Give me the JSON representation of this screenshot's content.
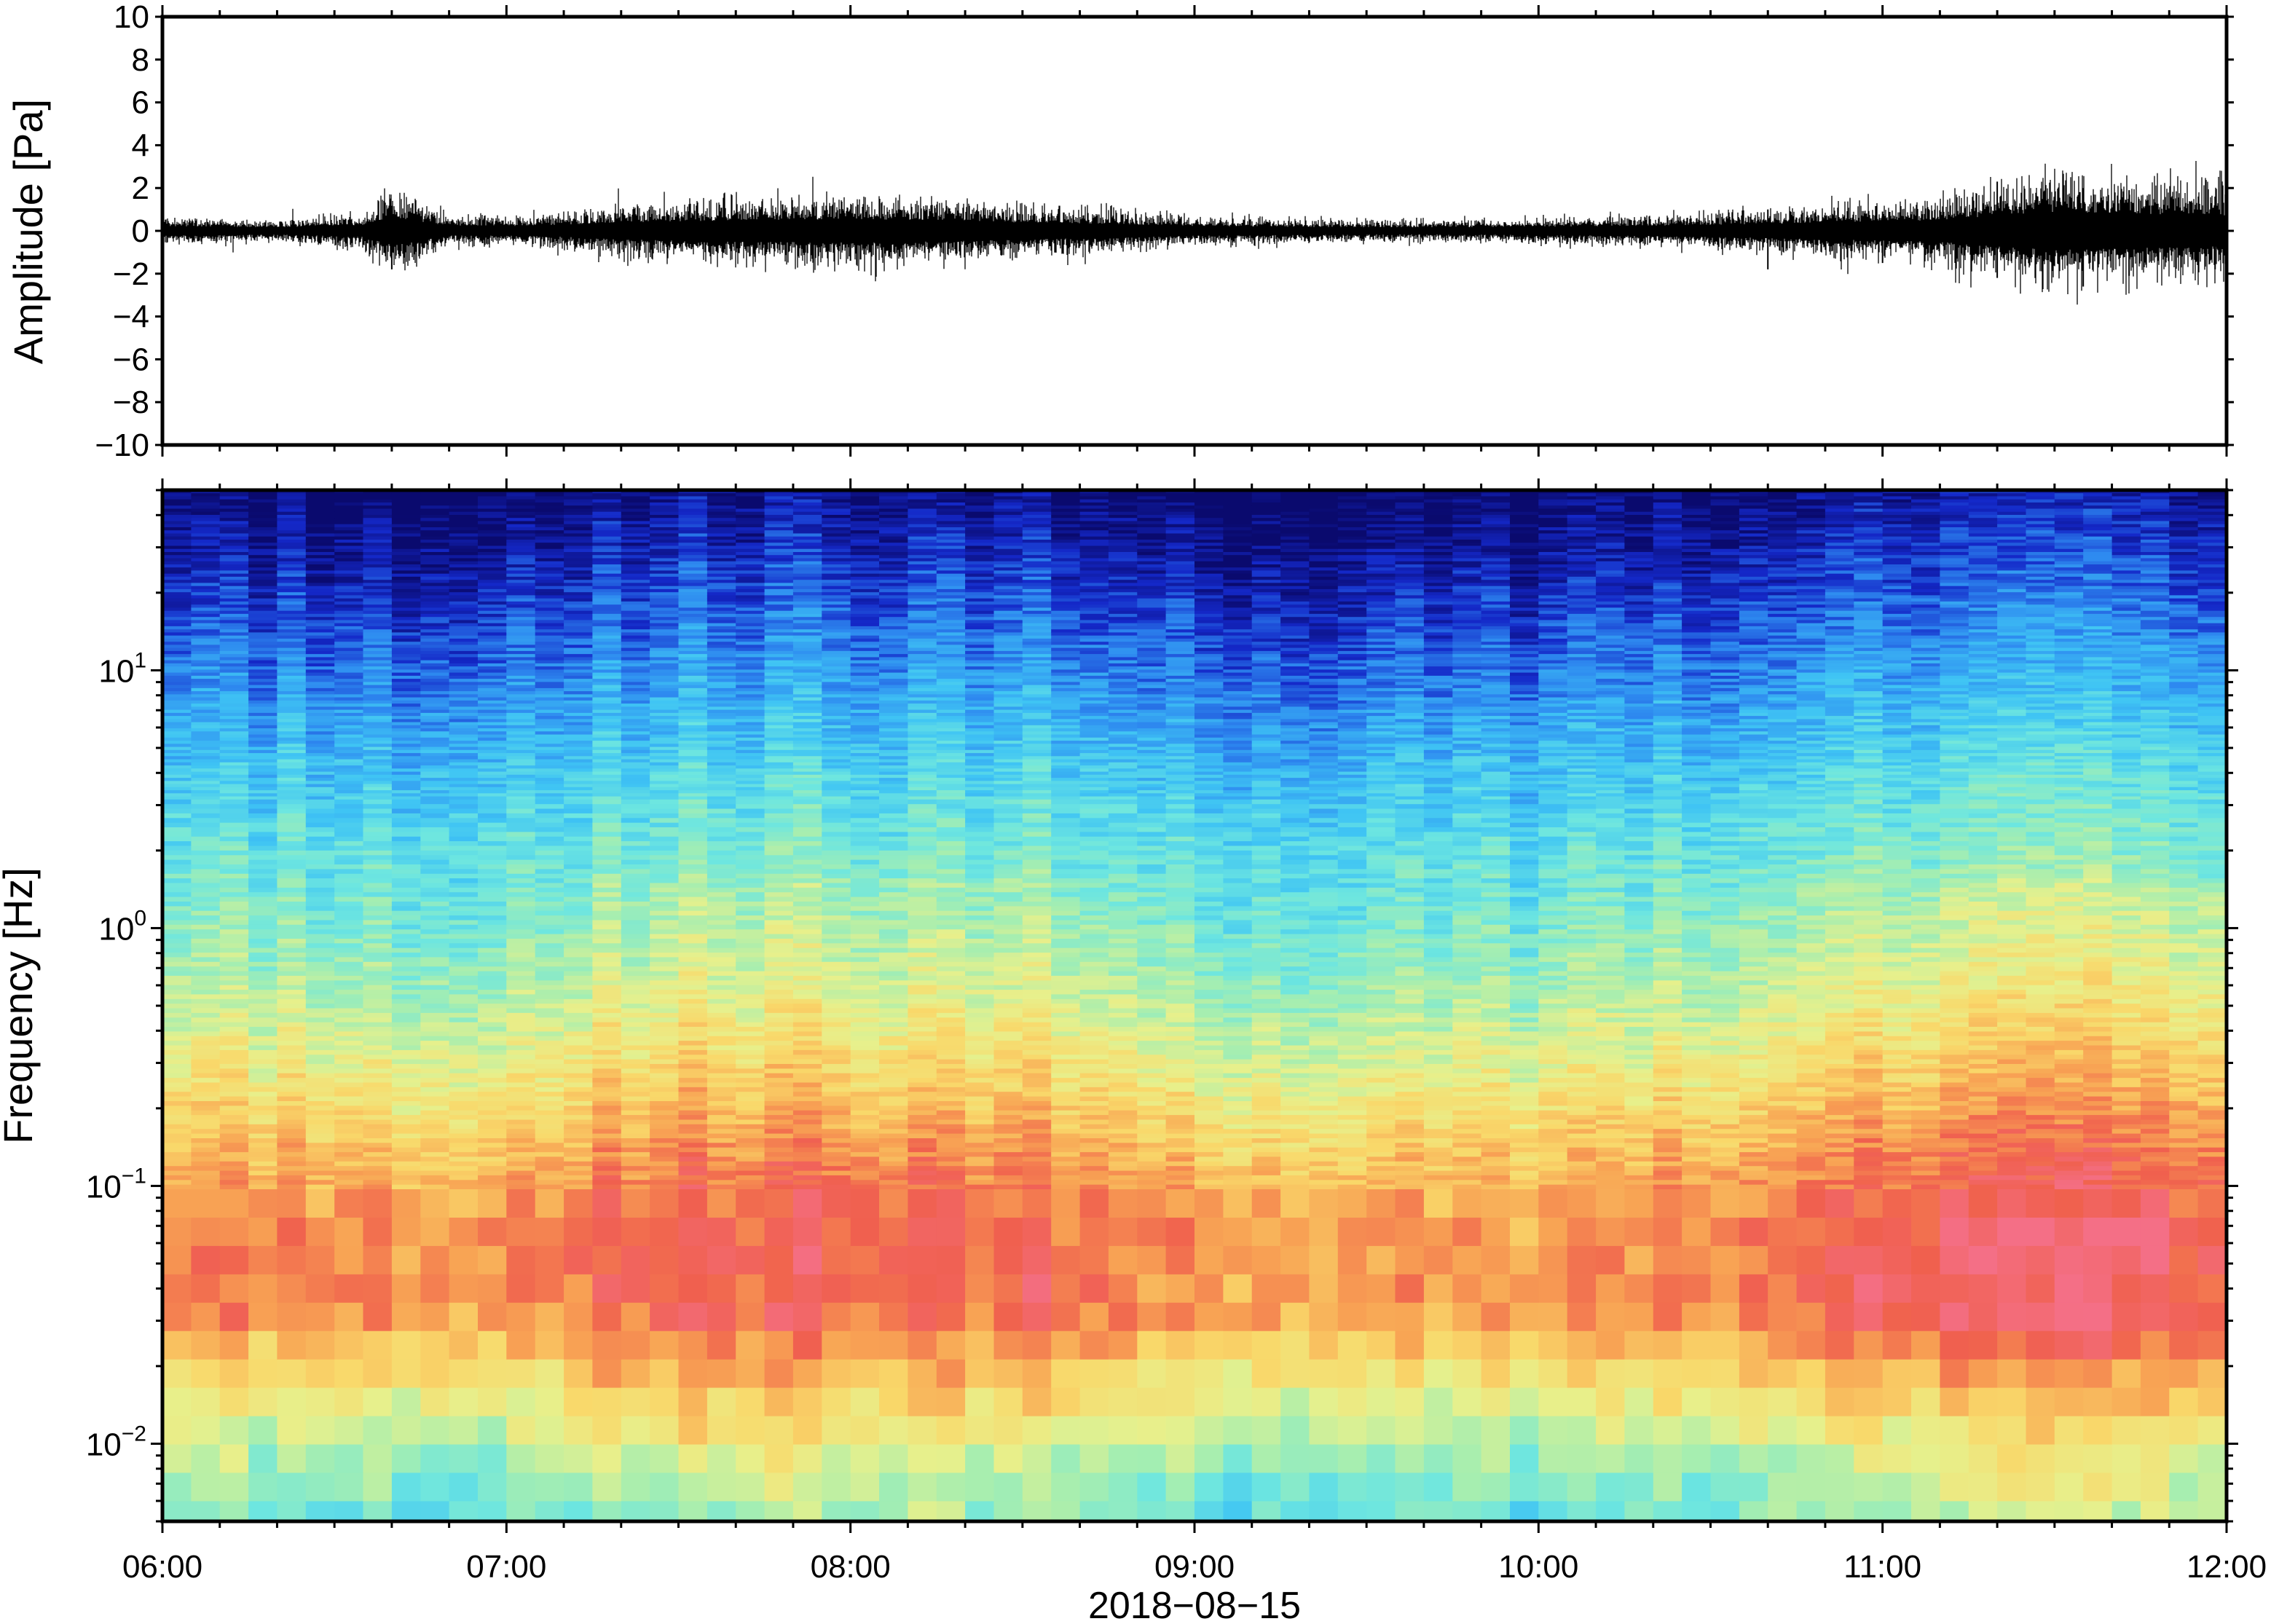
{
  "chart_data": [
    {
      "type": "line",
      "panel": "waveform",
      "ylabel": "Amplitude [Pa]",
      "ylim": [
        -10,
        10
      ],
      "yticks": [
        10,
        8,
        6,
        4,
        2,
        0,
        -2,
        -4,
        -6,
        -8,
        -10
      ],
      "ytick_labels": [
        "10",
        "8",
        "6",
        "4",
        "2",
        "0",
        "−2",
        "−4",
        "−6",
        "−8",
        "−10"
      ],
      "xlim": [
        "06:00",
        "12:00"
      ],
      "grid": false,
      "series": [
        {
          "envelope_time": [
            "06:00",
            "06:20",
            "06:35",
            "06:40",
            "06:50",
            "07:00",
            "07:10",
            "07:20",
            "07:40",
            "08:00",
            "08:15",
            "08:30",
            "08:45",
            "09:00",
            "09:15",
            "09:30",
            "09:45",
            "10:00",
            "10:15",
            "10:30",
            "10:40",
            "10:50",
            "11:00",
            "11:10",
            "11:20",
            "11:30",
            "11:40",
            "11:50",
            "12:00"
          ],
          "envelope_amplitude": [
            0.4,
            0.3,
            0.5,
            1.2,
            0.4,
            0.4,
            0.5,
            0.7,
            0.9,
            1.0,
            0.9,
            0.7,
            0.6,
            0.4,
            0.35,
            0.3,
            0.3,
            0.35,
            0.4,
            0.5,
            0.6,
            0.7,
            0.8,
            0.9,
            1.3,
            1.6,
            1.5,
            1.4,
            1.3
          ],
          "max_spikes": [
            {
              "time": "06:40",
              "min": -1.8,
              "max": 1.1
            },
            {
              "time": "08:00",
              "min": -1.4,
              "max": 1.0
            },
            {
              "time": "10:40",
              "min": -1.8,
              "max": 1.0
            },
            {
              "time": "11:00",
              "min": -1.5,
              "max": 0.9
            },
            {
              "time": "11:20",
              "min": -2.2,
              "max": 2.3
            },
            {
              "time": "11:35",
              "min": -2.6,
              "max": 2.0
            },
            {
              "time": "11:43",
              "min": -2.1,
              "max": 1.9
            },
            {
              "time": "11:58",
              "min": -1.8,
              "max": 1.6
            }
          ]
        }
      ]
    },
    {
      "type": "heatmap",
      "panel": "spectrogram",
      "ylabel": "Frequency [Hz]",
      "yscale": "log",
      "ylim": [
        0.005,
        50
      ],
      "yticks": [
        10,
        1,
        0.1,
        0.01
      ],
      "ytick_labels": [
        {
          "base": "10",
          "exp": "1"
        },
        {
          "base": "10",
          "exp": "0"
        },
        {
          "base": "10",
          "exp": "−1"
        },
        {
          "base": "10",
          "exp": "−2"
        }
      ],
      "xlim": [
        "06:00",
        "12:00"
      ],
      "xticks": [
        "06:00",
        "07:00",
        "08:00",
        "09:00",
        "10:00",
        "11:00",
        "12:00"
      ],
      "xlabel": "2018−08−15",
      "colormap": [
        "#0a0a6e",
        "#1428c8",
        "#2e8af0",
        "#3fc4f4",
        "#6de6e0",
        "#a6eeb0",
        "#e7f08c",
        "#f9d86a",
        "#f8a454",
        "#f0604e",
        "#f46f86"
      ],
      "relative_power_profile": {
        "log10_freq": [
          1.7,
          1.4,
          1.0,
          0.6,
          0.2,
          -0.2,
          -0.6,
          -0.9,
          -1.2,
          -1.5,
          -1.8,
          -2.1,
          -2.3
        ],
        "level": [
          0.0,
          0.08,
          0.2,
          0.32,
          0.42,
          0.52,
          0.66,
          0.78,
          0.86,
          0.84,
          0.66,
          0.5,
          0.44
        ]
      },
      "time_activity": {
        "time": [
          "06:00",
          "06:30",
          "07:00",
          "07:15",
          "07:45",
          "08:15",
          "08:45",
          "09:00",
          "09:30",
          "10:00",
          "10:30",
          "10:45",
          "11:00",
          "11:20",
          "11:40",
          "12:00"
        ],
        "boost": [
          0.0,
          -0.02,
          -0.05,
          0.05,
          0.08,
          0.06,
          0.03,
          -0.04,
          -0.05,
          -0.04,
          0.0,
          0.04,
          0.06,
          0.1,
          0.12,
          0.1
        ]
      }
    }
  ]
}
